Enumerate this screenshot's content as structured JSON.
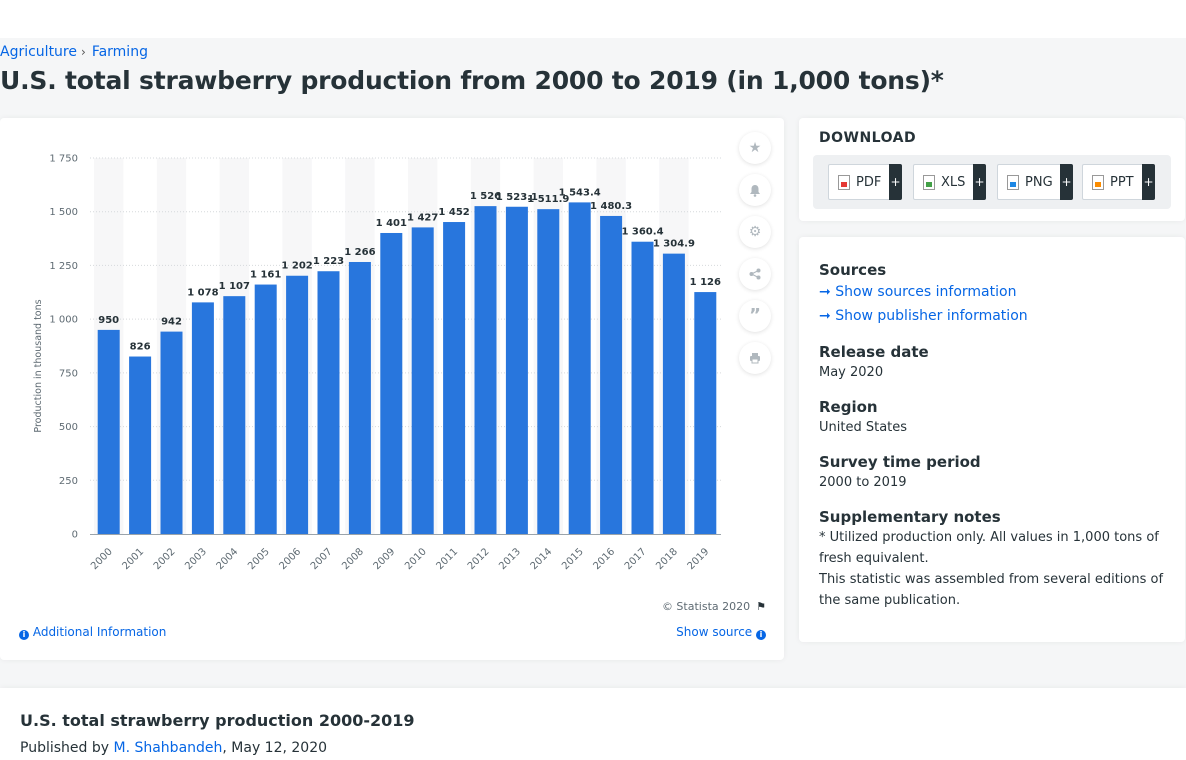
{
  "breadcrumb": {
    "items": [
      "Agriculture",
      "Farming"
    ],
    "separator": "›"
  },
  "page_title": "U.S. total strawberry production from 2000 to 2019 (in 1,000 tons)*",
  "chart_data": {
    "type": "bar",
    "title": "",
    "xlabel": "",
    "ylabel": "Production in thousand tons",
    "ylim": [
      0,
      1750
    ],
    "yticks": [
      0,
      250,
      500,
      750,
      1000,
      1250,
      1500,
      1750
    ],
    "ytick_labels": [
      "0",
      "250",
      "500",
      "750",
      "1 000",
      "1 250",
      "1 500",
      "1 750"
    ],
    "grid": true,
    "bar_color": "#2876dd",
    "categories": [
      "2000",
      "2001",
      "2002",
      "2003",
      "2004",
      "2005",
      "2006",
      "2007",
      "2008",
      "2009",
      "2010",
      "2011",
      "2012",
      "2013",
      "2014",
      "2015",
      "2016",
      "2017",
      "2018",
      "2019"
    ],
    "values": [
      950,
      826,
      942,
      1078,
      1107,
      1161,
      1202,
      1223,
      1266,
      1401,
      1427,
      1452,
      1526,
      1523.1,
      1511.9,
      1543.4,
      1480.3,
      1360.4,
      1304.9,
      1126
    ],
    "data_labels": [
      "950",
      "826",
      "942",
      "1 078",
      "1 107",
      "1 161",
      "1 202",
      "1 223",
      "1 266",
      "1 401",
      "1 427",
      "1 452",
      "1 526",
      "1 523.1",
      "1 511.9",
      "1 543.4",
      "1 480.3",
      "1 360.4",
      "1 304.9",
      "1 126"
    ]
  },
  "chart_footer": {
    "copyright": "© Statista 2020",
    "additional_info": "Additional Information",
    "show_source": "Show source"
  },
  "tools": [
    "star-icon",
    "bell-icon",
    "gear-icon",
    "share-icon",
    "quote-icon",
    "print-icon"
  ],
  "download": {
    "title": "DOWNLOAD",
    "buttons": [
      {
        "label": "PDF",
        "icon": "pdf-file-icon"
      },
      {
        "label": "XLS",
        "icon": "xls-file-icon"
      },
      {
        "label": "PNG",
        "icon": "png-file-icon"
      },
      {
        "label": "PPT",
        "icon": "ppt-file-icon"
      }
    ],
    "plus": "+"
  },
  "info": {
    "sources_title": "Sources",
    "show_sources": "Show sources information",
    "show_publisher": "Show publisher information",
    "release_date_title": "Release date",
    "release_date": "May 2020",
    "region_title": "Region",
    "region": "United States",
    "survey_title": "Survey time period",
    "survey": "2000 to 2019",
    "notes_title": "Supplementary notes",
    "note_1": "* Utilized production only. All values in 1,000 tons of fresh equivalent.",
    "note_2": "This statistic was assembled from several editions of the same publication."
  },
  "bottom": {
    "title": "U.S. total strawberry production 2000-2019",
    "published_by": "Published by",
    "author": "M. Shahbandeh",
    "date": ", May 12, 2020"
  },
  "colors": {
    "accent": "#0666e5",
    "bar": "#2876dd",
    "text": "#263238"
  }
}
